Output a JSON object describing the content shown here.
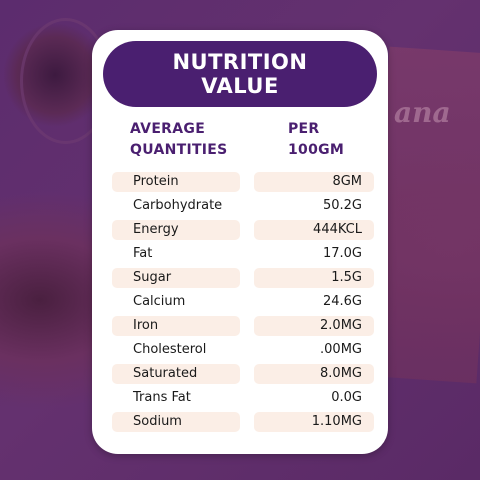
{
  "card": {
    "title_line1": "NUTRITION",
    "title_line2": "VALUE",
    "header_left_line1": "AVERAGE",
    "header_left_line2": "QUANTITIES",
    "header_right_line1": "PER",
    "header_right_line2": "100GM"
  },
  "rows": [
    {
      "name": "Protein",
      "value": "8GM"
    },
    {
      "name": "Carbohydrate",
      "value": "50.2G"
    },
    {
      "name": "Energy",
      "value": "444KCL"
    },
    {
      "name": "Fat",
      "value": "17.0G"
    },
    {
      "name": "Sugar",
      "value": "1.5G"
    },
    {
      "name": "Calcium",
      "value": "24.6G"
    },
    {
      "name": "Iron",
      "value": "2.0MG"
    },
    {
      "name": "Cholesterol",
      "value": ".00MG"
    },
    {
      "name": "Saturated",
      "value": "8.0MG"
    },
    {
      "name": "Trans Fat",
      "value": "0.0G"
    },
    {
      "name": "Sodium",
      "value": "1.10MG"
    }
  ],
  "background": {
    "package_text": "ana"
  },
  "colors": {
    "accent": "#4a1f70",
    "row_shade": "#fbeee6",
    "background": "#5c2c6e"
  }
}
